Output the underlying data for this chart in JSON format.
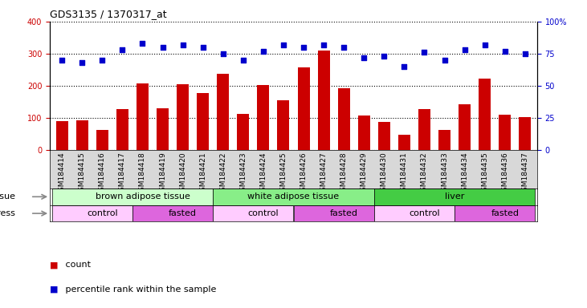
{
  "title": "GDS3135 / 1370317_at",
  "samples": [
    "GSM184414",
    "GSM184415",
    "GSM184416",
    "GSM184417",
    "GSM184418",
    "GSM184419",
    "GSM184420",
    "GSM184421",
    "GSM184422",
    "GSM184423",
    "GSM184424",
    "GSM184425",
    "GSM184426",
    "GSM184427",
    "GSM184428",
    "GSM184429",
    "GSM184430",
    "GSM184431",
    "GSM184432",
    "GSM184433",
    "GSM184434",
    "GSM184435",
    "GSM184436",
    "GSM184437"
  ],
  "counts": [
    90,
    92,
    62,
    128,
    207,
    130,
    205,
    177,
    238,
    113,
    202,
    155,
    258,
    310,
    192,
    107,
    88,
    48,
    127,
    62,
    143,
    222,
    110,
    102
  ],
  "percentiles": [
    280,
    272,
    280,
    312,
    332,
    320,
    328,
    320,
    300,
    280,
    308,
    328,
    320,
    328,
    320,
    288,
    292,
    260,
    304,
    280,
    312,
    328,
    308,
    300
  ],
  "ylim_left": [
    0,
    400
  ],
  "yticks_left": [
    0,
    100,
    200,
    300,
    400
  ],
  "yticks_right_vals": [
    0,
    100,
    200,
    300,
    400
  ],
  "yticks_right_labels": [
    "0",
    "25",
    "50",
    "75",
    "100%"
  ],
  "bar_color": "#cc0000",
  "dot_color": "#0000cc",
  "plot_bg": "#ffffff",
  "xticklabel_bg": "#d8d8d8",
  "tissue_groups": [
    {
      "label": "brown adipose tissue",
      "start": 0,
      "end": 8,
      "color": "#ccffcc"
    },
    {
      "label": "white adipose tissue",
      "start": 8,
      "end": 16,
      "color": "#88ee88"
    },
    {
      "label": "liver",
      "start": 16,
      "end": 24,
      "color": "#44cc44"
    }
  ],
  "stress_groups": [
    {
      "label": "control",
      "start": 0,
      "end": 4,
      "color": "#ffccff"
    },
    {
      "label": "fasted",
      "start": 4,
      "end": 8,
      "color": "#dd66dd"
    },
    {
      "label": "control",
      "start": 8,
      "end": 12,
      "color": "#ffccff"
    },
    {
      "label": "fasted",
      "start": 12,
      "end": 16,
      "color": "#dd66dd"
    },
    {
      "label": "control",
      "start": 16,
      "end": 20,
      "color": "#ffccff"
    },
    {
      "label": "fasted",
      "start": 20,
      "end": 24,
      "color": "#dd66dd"
    }
  ],
  "legend_count_label": "count",
  "legend_pct_label": "percentile rank within the sample",
  "tissue_label": "tissue",
  "stress_label": "stress",
  "bg_color": "#ffffff",
  "right_axis_color": "#0000cc",
  "left_axis_color": "#cc0000",
  "grid_color": "#000000",
  "label_fontsize": 8,
  "tick_fontsize": 7
}
